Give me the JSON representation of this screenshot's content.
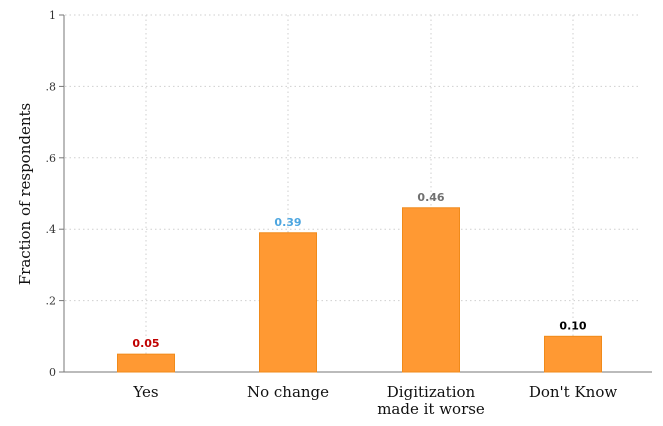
{
  "chart_data": {
    "type": "bar",
    "categories": [
      [
        "Yes"
      ],
      [
        "No change"
      ],
      [
        "Digitization",
        "made it worse"
      ],
      [
        "Don't Know"
      ]
    ],
    "values": [
      0.05,
      0.39,
      0.46,
      0.1
    ],
    "value_labels": [
      "0.05",
      "0.39",
      "0.46",
      "0.10"
    ],
    "value_label_colors": [
      "#c00000",
      "#4da6e0",
      "#707070",
      "#000000"
    ],
    "bar_color": "#ff9933",
    "bar_edge_color": "#f08a1a",
    "ylabel": "Fraction of respondents",
    "xlabel": "",
    "title": "",
    "ylim": [
      0,
      1
    ],
    "yticks": [
      0,
      0.2,
      0.4,
      0.6,
      0.8,
      1
    ],
    "ytick_labels": [
      "0",
      ".2",
      ".4",
      ".6",
      ".8",
      "1"
    ],
    "grid": "dotted"
  }
}
